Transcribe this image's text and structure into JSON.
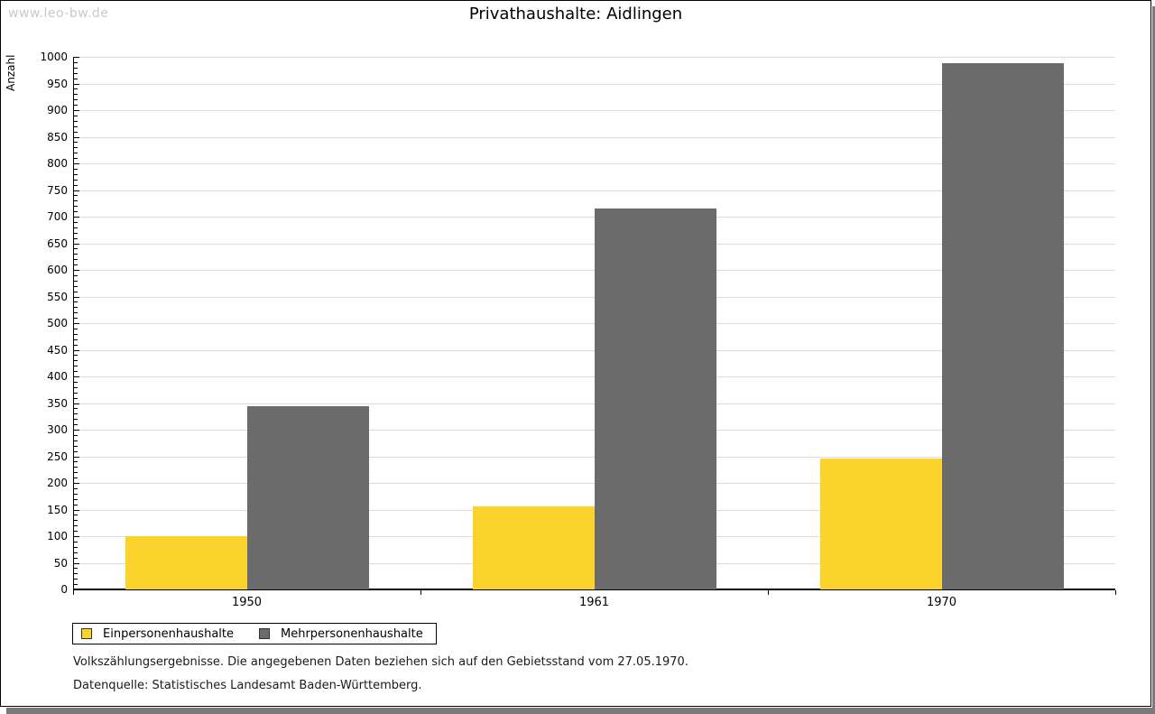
{
  "watermark": "www.leo-bw.de",
  "title": "Privathaushalte: Aidlingen",
  "chart_data": {
    "type": "bar",
    "title": "Privathaushalte: Aidlingen",
    "categories": [
      "1950",
      "1961",
      "1970"
    ],
    "series": [
      {
        "name": "Einpersonenhaushalte",
        "color": "#FCD32D",
        "values": [
          100,
          156,
          245
        ]
      },
      {
        "name": "Mehrpersonenhaushalte",
        "color": "#6B6B6B",
        "values": [
          344,
          716,
          988
        ]
      }
    ],
    "xlabel": "",
    "ylabel": "Anzahl",
    "ylim": [
      0,
      1000
    ],
    "ytick_step": 50,
    "minor_tick_step": 10,
    "grid": true,
    "gridline_color": "#DCDCDC",
    "axis_color": "#000000",
    "legend_position": "bottom-left"
  },
  "footnotes": [
    "Volkszählungsergebnisse. Die angegebenen Daten beziehen sich auf den Gebietsstand vom 27.05.1970.",
    "Datenquelle: Statistisches Landesamt Baden-Württemberg."
  ]
}
